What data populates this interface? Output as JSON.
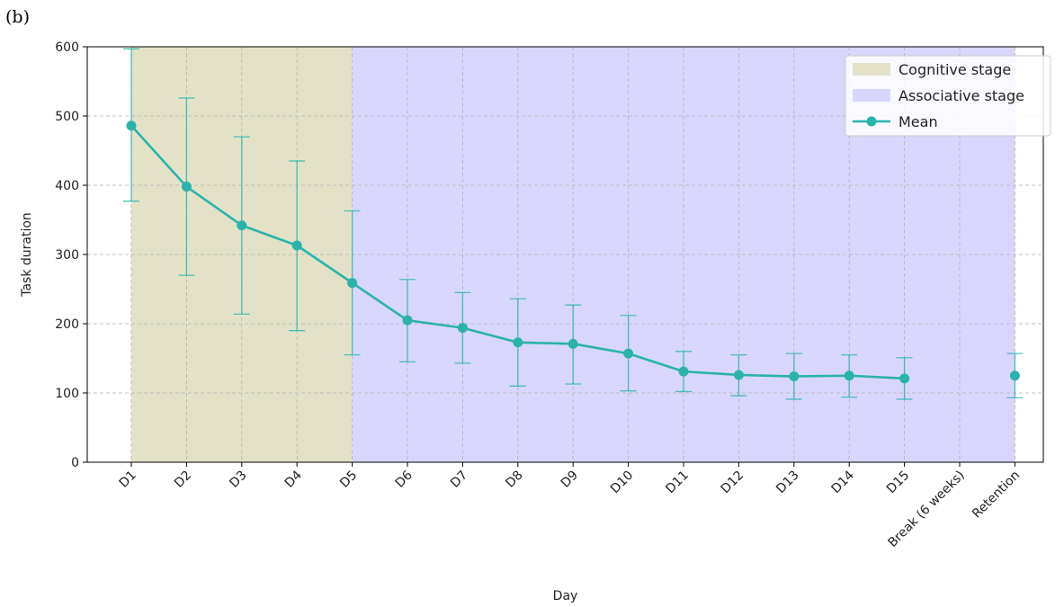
{
  "panel_label": "(b)",
  "chart_data": {
    "type": "line",
    "xlabel": "Day",
    "ylabel": "Task duration",
    "ylim": [
      0,
      600
    ],
    "yticks": [
      0,
      100,
      200,
      300,
      400,
      500,
      600
    ],
    "categories": [
      "D1",
      "D2",
      "D3",
      "D4",
      "D5",
      "D6",
      "D7",
      "D8",
      "D9",
      "D10",
      "D11",
      "D12",
      "D13",
      "D14",
      "D15",
      "Break (6 weeks)",
      "Retention"
    ],
    "grid": true,
    "legend_position": "top-right",
    "stages": [
      {
        "name": "Cognitive stage",
        "from": "D1",
        "to": "D5",
        "color": "#e3e2c9"
      },
      {
        "name": "Associative stage",
        "from": "D5",
        "to": "Retention",
        "color": "#d8d6fd"
      }
    ],
    "series": [
      {
        "name": "Mean",
        "color": "#2ab3ab",
        "points": [
          {
            "x": "D1",
            "y": 486,
            "lo": 377,
            "hi": 597
          },
          {
            "x": "D2",
            "y": 398,
            "lo": 270,
            "hi": 526
          },
          {
            "x": "D3",
            "y": 342,
            "lo": 214,
            "hi": 470
          },
          {
            "x": "D4",
            "y": 313,
            "lo": 190,
            "hi": 435
          },
          {
            "x": "D5",
            "y": 259,
            "lo": 155,
            "hi": 363
          },
          {
            "x": "D6",
            "y": 205,
            "lo": 145,
            "hi": 264
          },
          {
            "x": "D7",
            "y": 194,
            "lo": 143,
            "hi": 245
          },
          {
            "x": "D8",
            "y": 173,
            "lo": 110,
            "hi": 236
          },
          {
            "x": "D9",
            "y": 171,
            "lo": 113,
            "hi": 227
          },
          {
            "x": "D10",
            "y": 157,
            "lo": 103,
            "hi": 212
          },
          {
            "x": "D11",
            "y": 131,
            "lo": 102,
            "hi": 160
          },
          {
            "x": "D12",
            "y": 126,
            "lo": 96,
            "hi": 155
          },
          {
            "x": "D13",
            "y": 124,
            "lo": 91,
            "hi": 157
          },
          {
            "x": "D14",
            "y": 125,
            "lo": 94,
            "hi": 155
          },
          {
            "x": "D15",
            "y": 121,
            "lo": 91,
            "hi": 151
          },
          {
            "x": "Retention",
            "y": 125,
            "lo": 93,
            "hi": 157,
            "connected": false
          }
        ]
      }
    ]
  }
}
